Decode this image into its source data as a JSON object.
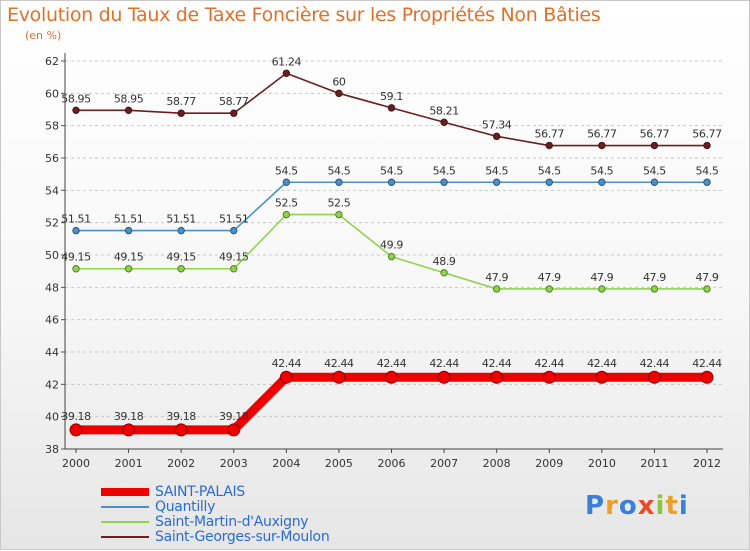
{
  "title": "Evolution du Taux de Taxe Foncière sur les Propriétés Non Bâties",
  "subtitle": "(en %)",
  "logo": {
    "text": "Proxiti",
    "letters": [
      {
        "ch": "P",
        "color": "#3a7fd9"
      },
      {
        "ch": "r",
        "color": "#e8a12a"
      },
      {
        "ch": "o",
        "color": "#3a7fd9"
      },
      {
        "ch": "x",
        "color": "#e64a2a"
      },
      {
        "ch": "i",
        "color": "#8cc43a"
      },
      {
        "ch": "t",
        "color": "#e8a12a"
      },
      {
        "ch": "i",
        "color": "#3a7fd9"
      }
    ]
  },
  "chart_data": {
    "type": "line",
    "title": "Evolution du Taux de Taxe Foncière sur les Propriétés Non Bâties",
    "ylabel": "(en %)",
    "x": [
      "2000",
      "2001",
      "2002",
      "2003",
      "2004",
      "2005",
      "2006",
      "2007",
      "2008",
      "2009",
      "2010",
      "2011",
      "2012"
    ],
    "ylim": [
      38,
      62
    ],
    "yticks": [
      38,
      40,
      42,
      44,
      46,
      48,
      50,
      52,
      54,
      56,
      58,
      60,
      62
    ],
    "grid": "y-dashed",
    "legend_position": "bottom-left",
    "series": [
      {
        "name": "Saint-Georges-sur-Moulon",
        "color": "#6b1f1f",
        "values": [
          58.95,
          58.95,
          58.77,
          58.77,
          61.24,
          60,
          59.1,
          58.21,
          57.34,
          56.77,
          56.77,
          56.77,
          56.77
        ],
        "labels": [
          "58.95",
          "58.95",
          "58.77",
          "58.77",
          "61.24",
          "60",
          "59.1",
          "58.21",
          "57.34",
          "56.77",
          "56.77",
          "56.77",
          "56.77"
        ]
      },
      {
        "name": "Quantilly",
        "color": "#4a90cc",
        "values": [
          51.51,
          51.51,
          51.51,
          51.51,
          54.5,
          54.5,
          54.5,
          54.5,
          54.5,
          54.5,
          54.5,
          54.5,
          54.5
        ],
        "labels": [
          "51.51",
          "51.51",
          "51.51",
          "51.51",
          "54.5",
          "54.5",
          "54.5",
          "54.5",
          "54.5",
          "54.5",
          "54.5",
          "54.5",
          "54.5"
        ]
      },
      {
        "name": "Saint-Martin-d'Auxigny",
        "color": "#8ed34a",
        "values": [
          49.15,
          49.15,
          49.15,
          49.15,
          52.5,
          52.5,
          49.9,
          48.9,
          47.9,
          47.9,
          47.9,
          47.9,
          47.9
        ],
        "labels": [
          "49.15",
          "49.15",
          "49.15",
          "49.15",
          "52.5",
          "52.5",
          "49.9",
          "48.9",
          "47.9",
          "47.9",
          "47.9",
          "47.9",
          "47.9"
        ]
      },
      {
        "name": "SAINT-PALAIS",
        "color": "#ee0000",
        "values": [
          39.18,
          39.18,
          39.18,
          39.18,
          42.44,
          42.44,
          42.44,
          42.44,
          42.44,
          42.44,
          42.44,
          42.44,
          42.44
        ],
        "labels": [
          "39.18",
          "39.18",
          "39.18",
          "39.18",
          "42.44",
          "42.44",
          "42.44",
          "42.44",
          "42.44",
          "42.44",
          "42.44",
          "42.44",
          "42.44"
        ]
      }
    ],
    "legend_order": [
      "SAINT-PALAIS",
      "Quantilly",
      "Saint-Martin-d'Auxigny",
      "Saint-Georges-sur-Moulon"
    ]
  }
}
